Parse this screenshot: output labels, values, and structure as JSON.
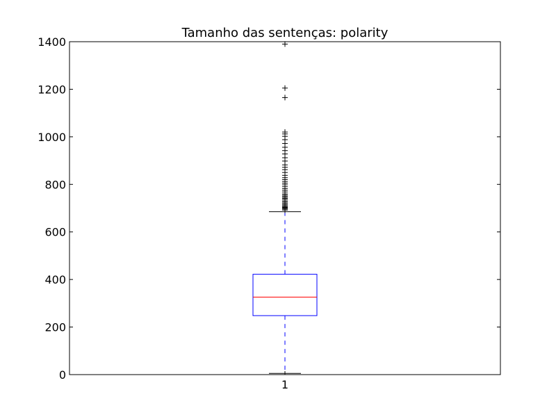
{
  "chart_data": {
    "type": "boxplot",
    "title": "Tamanho das sentenças: polarity",
    "xlabel": "",
    "ylabel": "",
    "ylim": [
      0,
      1400
    ],
    "y_ticks": [
      0,
      200,
      400,
      600,
      800,
      1000,
      1200,
      1400
    ],
    "categories": [
      "1"
    ],
    "grid": false,
    "box": {
      "q1": 248,
      "median": 326,
      "q3": 422,
      "whisker_low": 5,
      "whisker_high": 685,
      "outliers": [
        692,
        696,
        700,
        703,
        707,
        710,
        715,
        720,
        725,
        730,
        736,
        741,
        745,
        750,
        755,
        760,
        768,
        775,
        782,
        790,
        798,
        805,
        812,
        820,
        828,
        838,
        850,
        862,
        872,
        882,
        898,
        912,
        928,
        942,
        956,
        972,
        988,
        1002,
        1012,
        1020,
        1165,
        1205,
        1390
      ]
    },
    "colors": {
      "box": "#0000ff",
      "whisker": "#0000ff",
      "median": "#ff0000",
      "cap": "#000000",
      "outlier": "#000000",
      "frame": "#000000"
    }
  }
}
